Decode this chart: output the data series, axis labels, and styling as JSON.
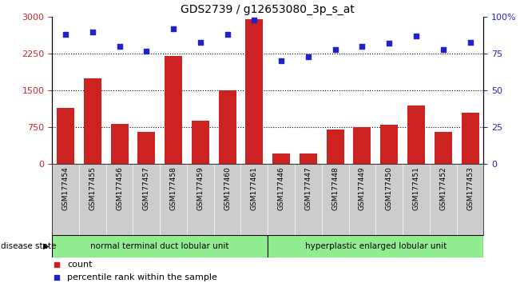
{
  "title": "GDS2739 / g12653080_3p_s_at",
  "samples": [
    "GSM177454",
    "GSM177455",
    "GSM177456",
    "GSM177457",
    "GSM177458",
    "GSM177459",
    "GSM177460",
    "GSM177461",
    "GSM177446",
    "GSM177447",
    "GSM177448",
    "GSM177449",
    "GSM177450",
    "GSM177451",
    "GSM177452",
    "GSM177453"
  ],
  "counts": [
    1150,
    1750,
    820,
    660,
    2200,
    880,
    1500,
    2950,
    220,
    210,
    700,
    760,
    800,
    1200,
    660,
    1050
  ],
  "percentiles": [
    88,
    90,
    80,
    77,
    92,
    83,
    88,
    98,
    70,
    73,
    78,
    80,
    82,
    87,
    78,
    83
  ],
  "group1_label": "normal terminal duct lobular unit",
  "group2_label": "hyperplastic enlarged lobular unit",
  "group1_count": 8,
  "group2_count": 8,
  "bar_color": "#cc2222",
  "dot_color": "#2222cc",
  "group_bg": "#90ee90",
  "sample_box_bg": "#cccccc",
  "ylim_left": [
    0,
    3000
  ],
  "ylim_right": [
    0,
    100
  ],
  "yticks_left": [
    0,
    750,
    1500,
    2250,
    3000
  ],
  "yticks_right": [
    0,
    25,
    50,
    75,
    100
  ],
  "grid_values": [
    750,
    1500,
    2250
  ],
  "legend_count_label": "count",
  "legend_pct_label": "percentile rank within the sample",
  "disease_state_label": "disease state"
}
